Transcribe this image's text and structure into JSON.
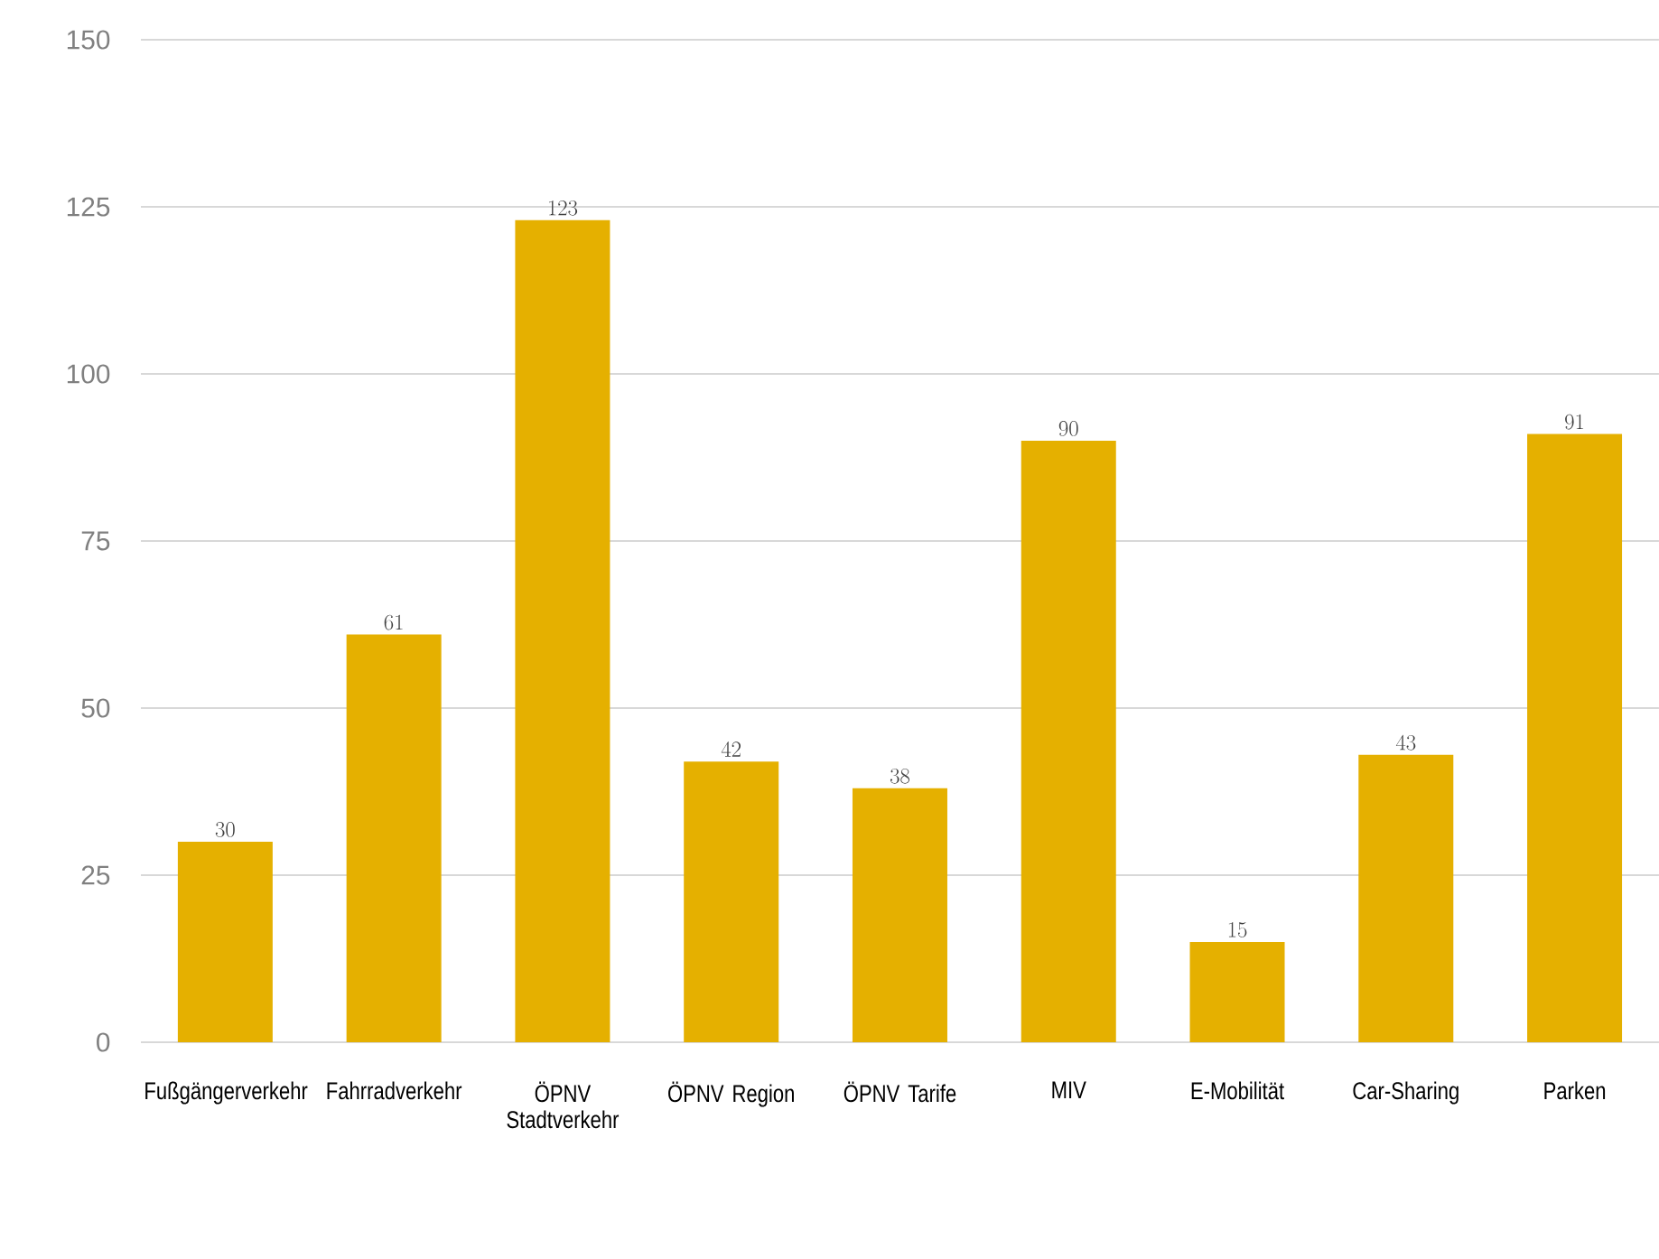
{
  "chart_data": {
    "type": "bar",
    "categories": [
      "Fußgängerverkehr",
      "Fahrradverkehr",
      "ÖPNV Stadtverkehr",
      "ÖPNV Region",
      "ÖPNV Tarife",
      "MIV",
      "E-Mobilität",
      "Car-Sharing",
      "Parken"
    ],
    "values": [
      30,
      61,
      123,
      42,
      38,
      90,
      15,
      43,
      91
    ],
    "color": "#e5b000",
    "ylim": [
      0,
      150
    ],
    "yticks": [
      0,
      25,
      50,
      75,
      100,
      125,
      150
    ],
    "grid": "y",
    "data_labels": true
  }
}
